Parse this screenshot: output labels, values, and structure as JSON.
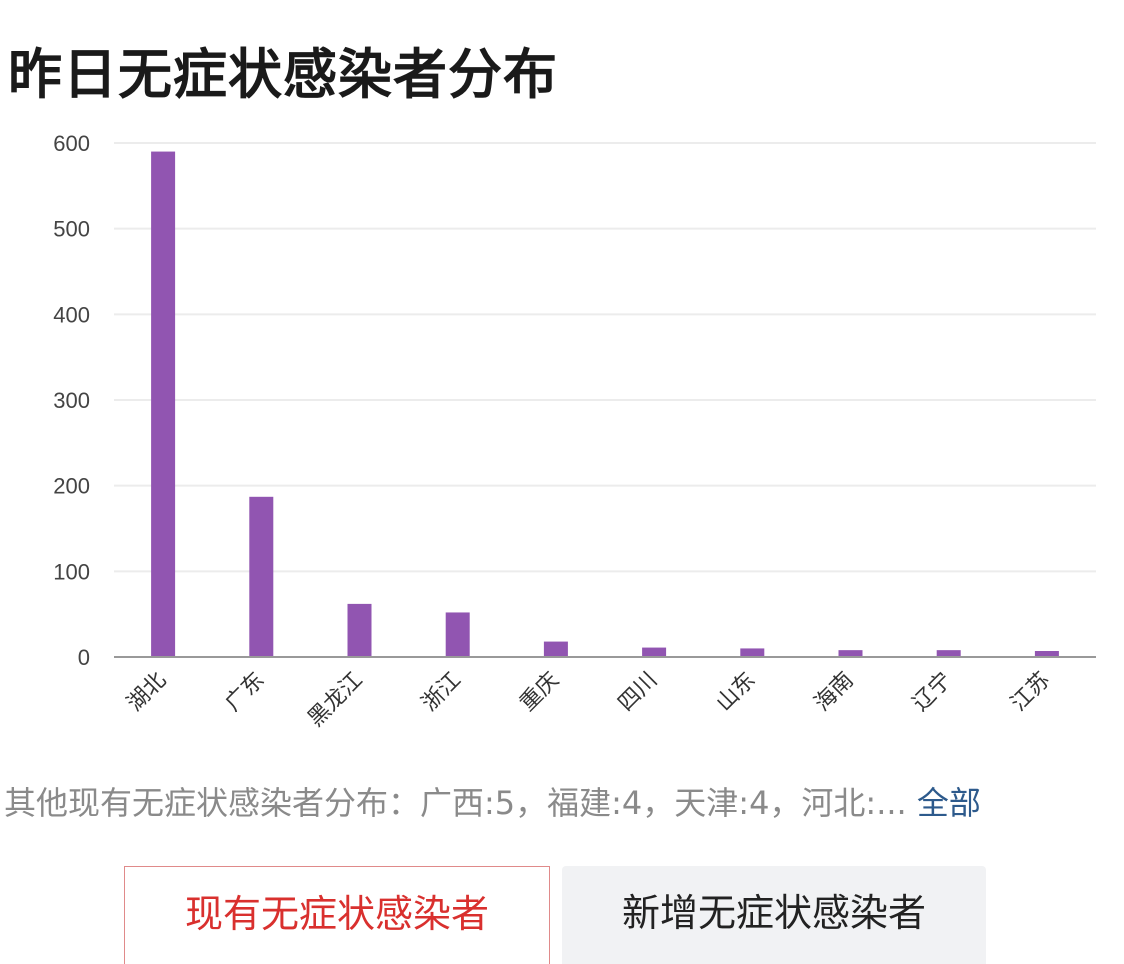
{
  "title": "昨日无症状感染者分布",
  "chart_data": {
    "type": "bar",
    "title": "",
    "xlabel": "",
    "ylabel": "",
    "categories": [
      "湖北",
      "广东",
      "黑龙江",
      "浙江",
      "重庆",
      "四川",
      "山东",
      "海南",
      "辽宁",
      "江苏"
    ],
    "values": [
      590,
      187,
      62,
      52,
      18,
      11,
      10,
      8,
      8,
      7
    ],
    "ylim": [
      0,
      600
    ],
    "yticks": [
      0,
      100,
      200,
      300,
      400,
      500,
      600
    ],
    "grid": true,
    "bar_color": "#9155b1"
  },
  "other_distribution": {
    "text": "其他现有无症状感染者分布：广西:5，福建:4，天津:4，河北:...",
    "link_label": "全部"
  },
  "tabs": [
    {
      "label": "现有无症状感染者",
      "active": true
    },
    {
      "label": "新增无症状感染者",
      "active": false
    }
  ],
  "colors": {
    "bar": "#9155b1",
    "active_tab_text": "#d9302e",
    "link": "#2d5a8c"
  }
}
